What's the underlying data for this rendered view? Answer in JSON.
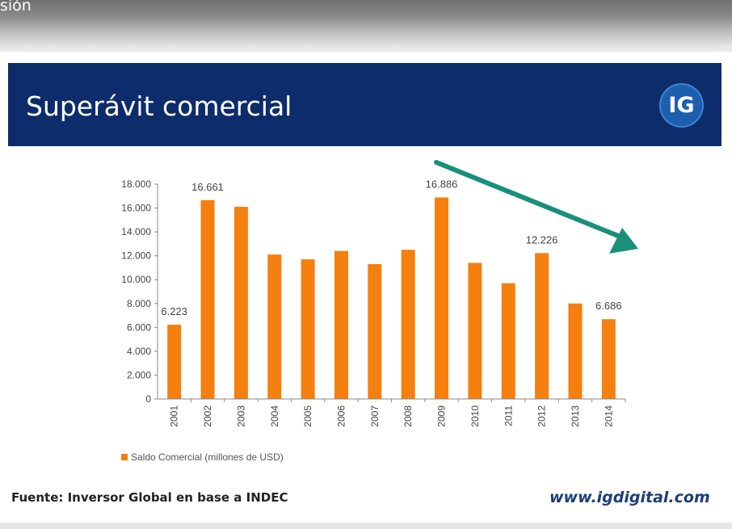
{
  "top_text": "sión",
  "slide": {
    "title": "Superávit comercial",
    "logo_text": "IG",
    "source": "Fuente: Inversor Global en base a INDEC",
    "website": "www.igdigital.com"
  },
  "chart_data": {
    "type": "bar",
    "categories": [
      "2001",
      "2002",
      "2003",
      "2004",
      "2005",
      "2006",
      "2007",
      "2008",
      "2009",
      "2010",
      "2011",
      "2012",
      "2013",
      "2014"
    ],
    "series": [
      {
        "name": "Saldo Comercial (millones de USD)",
        "values": [
          6223,
          16661,
          16100,
          12100,
          11700,
          12400,
          11300,
          12500,
          16886,
          11400,
          9700,
          12226,
          8000,
          6686
        ]
      }
    ],
    "data_labels": {
      "0": "6.223",
      "1": "16.661",
      "8": "16.886",
      "11": "12.226",
      "13": "6.686"
    },
    "yticks": [
      "0",
      "2.000",
      "4.000",
      "6.000",
      "8.000",
      "10.000",
      "12.000",
      "14.000",
      "16.000",
      "18.000"
    ],
    "ylim": [
      0,
      18000
    ],
    "title": "",
    "xlabel": "",
    "ylabel": "",
    "grid": false,
    "legend_position": "bottom-left",
    "bar_color": "#f57f0f",
    "annotation": {
      "type": "downward-trend-arrow",
      "color": "#18907a"
    }
  }
}
